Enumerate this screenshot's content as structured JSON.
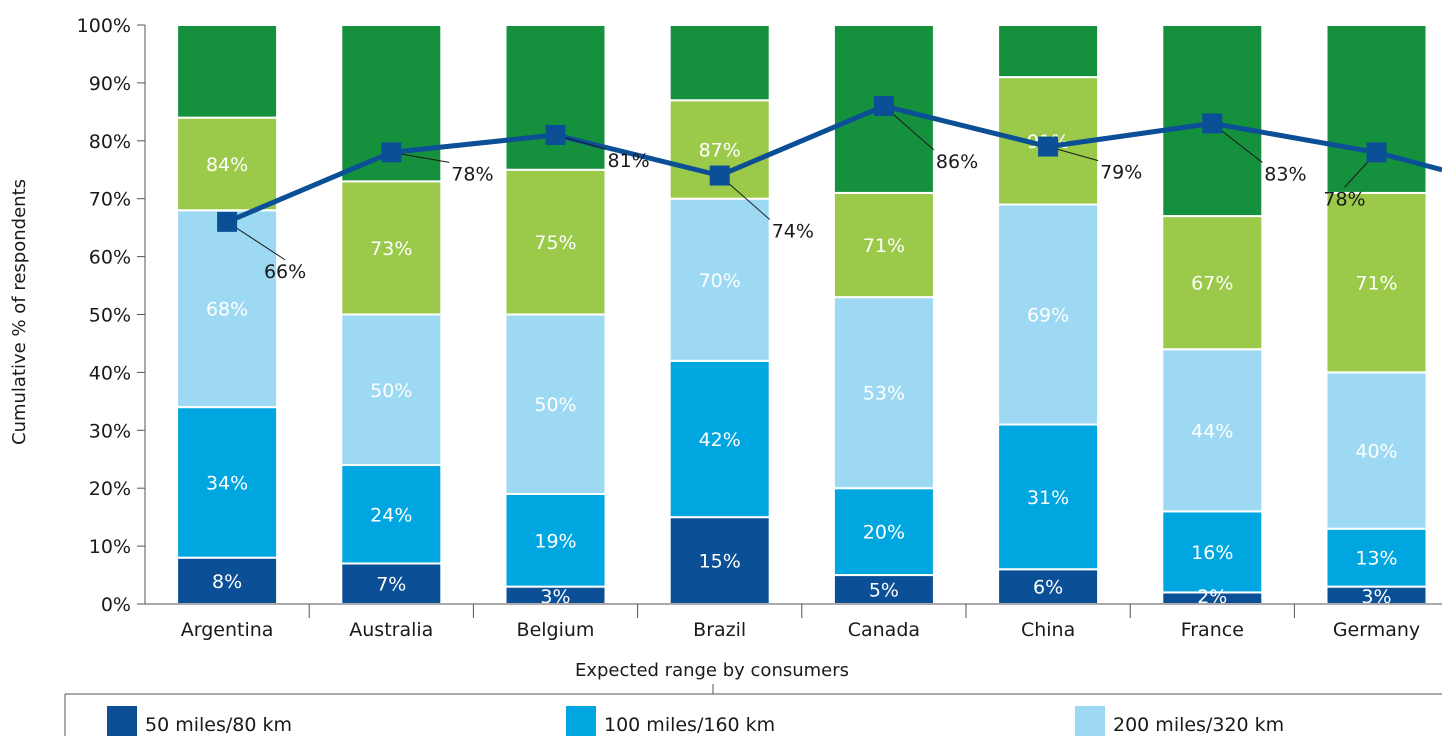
{
  "chart_data": {
    "type": "bar",
    "subtype": "stacked-cumulative-with-line",
    "categories": [
      "Argentina",
      "Australia",
      "Belgium",
      "Brazil",
      "Canada",
      "China",
      "France",
      "Germany"
    ],
    "ylabel": "Cumulative % of respondents",
    "xlabel": "Expected range by consumers",
    "ylim": [
      0,
      100
    ],
    "yticks": [
      "0%",
      "10%",
      "20%",
      "30%",
      "40%",
      "50%",
      "60%",
      "70%",
      "80%",
      "90%",
      "100%"
    ],
    "series": [
      {
        "name": "50 miles/80 km",
        "color": "#0b4f96",
        "values": [
          8,
          7,
          3,
          15,
          5,
          6,
          2,
          3
        ],
        "labels": [
          "8%",
          "7%",
          "3%",
          "15%",
          "5%",
          "6%",
          "2%",
          "3%"
        ]
      },
      {
        "name": "100 miles/160 km",
        "color": "#00a6e0",
        "values": [
          34,
          24,
          19,
          42,
          20,
          31,
          16,
          13
        ],
        "labels": [
          "34%",
          "24%",
          "19%",
          "42%",
          "20%",
          "31%",
          "16%",
          "13%"
        ]
      },
      {
        "name": "200 miles/320 km",
        "color": "#9ed9f4",
        "values": [
          68,
          50,
          50,
          70,
          53,
          69,
          44,
          40
        ],
        "labels": [
          "68%",
          "50%",
          "50%",
          "70%",
          "53%",
          "69%",
          "44%",
          "40%"
        ]
      },
      {
        "values": [
          84,
          73,
          75,
          87,
          71,
          91,
          67,
          71
        ],
        "color": "#9bc94a",
        "labels": [
          "84%",
          "73%",
          "75%",
          "87%",
          "71%",
          "91%",
          "67%",
          "71%"
        ]
      },
      {
        "values": [
          100,
          100,
          100,
          100,
          100,
          100,
          100,
          100
        ],
        "color": "#15913e"
      }
    ],
    "line": {
      "color": "#0b4f96",
      "values": [
        66,
        78,
        81,
        74,
        86,
        79,
        83,
        78
      ],
      "labels": [
        "66%",
        "78%",
        "81%",
        "74%",
        "86%",
        "79%",
        "83%",
        "78%"
      ],
      "end_value": 75
    },
    "legend_position": "bottom"
  }
}
